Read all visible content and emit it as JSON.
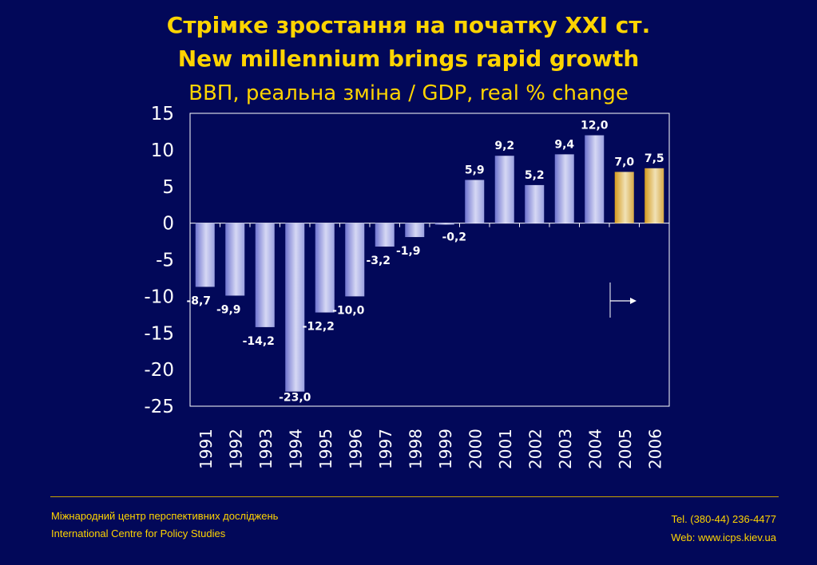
{
  "header": {
    "title_uk": "Стрімке зростання на початку XXI ст.",
    "title_en": "New millennium brings rapid growth",
    "subtitle": "ВВП, реальна зміна / GDP, real % change"
  },
  "chart_data": {
    "type": "bar",
    "categories": [
      "1991",
      "1992",
      "1993",
      "1994",
      "1995",
      "1996",
      "1997",
      "1998",
      "1999",
      "2000",
      "2001",
      "2002",
      "2003",
      "2004",
      "2005",
      "2006"
    ],
    "values": [
      -8.7,
      -9.9,
      -14.2,
      -23.0,
      -12.2,
      -10.0,
      -3.2,
      -1.9,
      -0.2,
      5.9,
      9.2,
      5.2,
      9.4,
      12.0,
      7.0,
      7.5
    ],
    "data_labels": [
      "-8,7",
      "-9,9",
      "-14,2",
      "-23,0",
      "-12,2",
      "-10,0",
      "-3,2",
      "-1,9",
      "-0,2",
      "5,9",
      "9,2",
      "5,2",
      "9,4",
      "12,0",
      "7,0",
      "7,5"
    ],
    "forecast_from": "2005",
    "ylim": [
      -25,
      15
    ],
    "yticks": [
      15,
      10,
      5,
      0,
      -5,
      -10,
      -15,
      -20,
      -25
    ],
    "grid": false,
    "colors": {
      "actual": "#8a8fd8",
      "forecast": "#e0b040",
      "axis": "#ffffff",
      "label": "#ffffff",
      "plot_bg": "#020859"
    }
  },
  "footer": {
    "org_uk": "Міжнародний центр перспективних досліджень",
    "org_en": "International Centre for Policy Studies",
    "tel": "Tel. (380-44) 236-4477",
    "web": "Web: www.icps.kiev.ua"
  }
}
